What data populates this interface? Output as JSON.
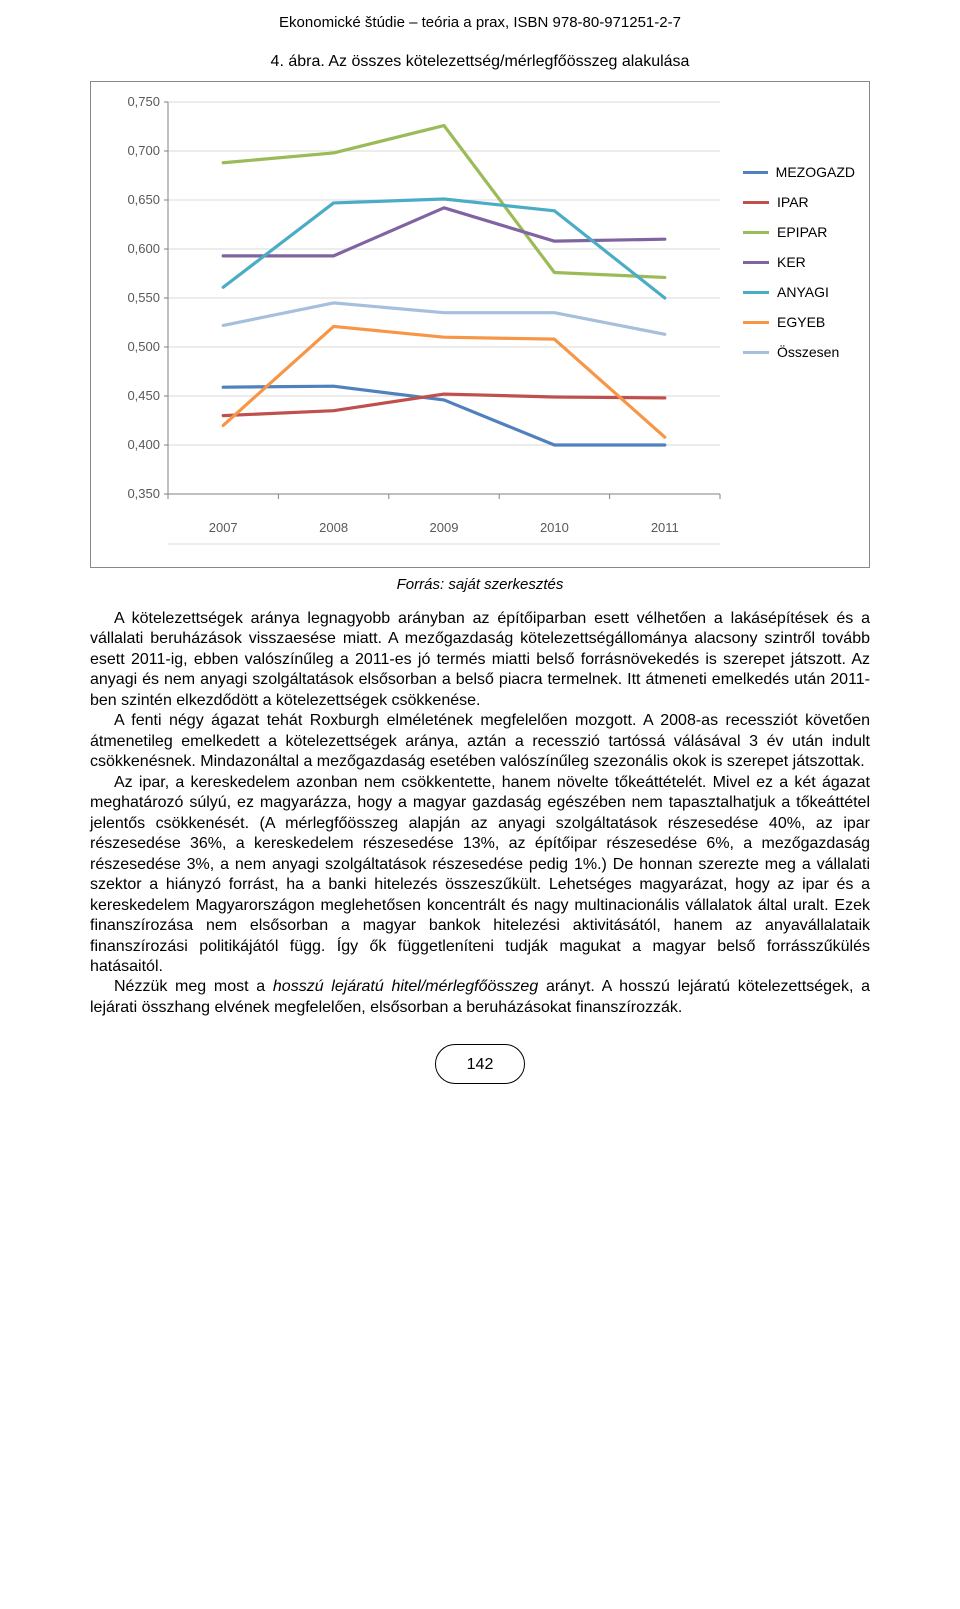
{
  "header_text": "Ekonomické štúdie – teória a prax, ISBN 978-80-971251-2-7",
  "fig_title": "4. ábra. Az összes kötelezettség/mérlegfőösszeg alakulása",
  "caption": "Forrás: saját szerkesztés",
  "page_number": "142",
  "chart": {
    "type": "line",
    "x_categories": [
      "2007",
      "2008",
      "2009",
      "2010",
      "2011"
    ],
    "y_ticks": [
      "0,350",
      "0,400",
      "0,450",
      "0,500",
      "0,550",
      "0,600",
      "0,650",
      "0,700",
      "0,750"
    ],
    "ylim": [
      0.35,
      0.75
    ],
    "plot_background": "#ffffff",
    "grid_color": "#d9d9d9",
    "axis_color": "#828282",
    "tick_font_color": "#595959",
    "tick_font_size": 13,
    "line_width": 3.2,
    "series": [
      {
        "name": "MEZOGAZD",
        "color": "#4f81bd",
        "values": [
          0.459,
          0.46,
          0.446,
          0.4,
          0.4
        ]
      },
      {
        "name": "IPAR",
        "color": "#c0504d",
        "values": [
          0.43,
          0.435,
          0.452,
          0.449,
          0.448
        ]
      },
      {
        "name": "EPIPAR",
        "color": "#9bbb59",
        "values": [
          0.688,
          0.698,
          0.726,
          0.576,
          0.571
        ]
      },
      {
        "name": "KER",
        "color": "#8064a2",
        "values": [
          0.593,
          0.593,
          0.642,
          0.608,
          0.61
        ]
      },
      {
        "name": "ANYAGI",
        "color": "#4bacc6",
        "values": [
          0.561,
          0.647,
          0.651,
          0.639,
          0.55
        ]
      },
      {
        "name": "EGYEB",
        "color": "#f79646",
        "values": [
          0.42,
          0.521,
          0.51,
          0.508,
          0.408
        ]
      },
      {
        "name": "Összesen",
        "color": "#a6bfdd",
        "values": [
          0.522,
          0.545,
          0.535,
          0.535,
          0.513
        ]
      }
    ]
  },
  "paragraphs": [
    "A kötelezettségek aránya legnagyobb arányban az építőiparban esett vélhetően a lakásépítések és a vállalati beruházások visszaesése miatt. A mezőgazdaság kötelezettségállománya alacsony szintről tovább esett 2011-ig, ebben valószínűleg a 2011-es jó termés miatti belső forrásnövekedés is szerepet játszott. Az anyagi és nem anyagi szolgáltatások elsősorban a belső piacra termelnek. Itt átmeneti emelkedés után 2011-ben szintén elkezdődött a kötelezettségek csökkenése.",
    "A fenti négy ágazat tehát Roxburgh elméletének megfelelően mozgott. A 2008-as recessziót követően átmenetileg emelkedett a kötelezettségek aránya, aztán a recesszió tartóssá válásával 3 év után indult csökkenésnek. Mindazonáltal a mezőgazdaság esetében valószínűleg szezonális okok is szerepet játszottak.",
    "Az ipar, a kereskedelem azonban nem csökkentette, hanem növelte tőkeáttételét. Mivel ez a két ágazat meghatározó súlyú, ez magyarázza, hogy a magyar gazdaság egészében nem tapasztalhatjuk a tőkeáttétel jelentős csökkenését. (A mérlegfőösszeg alapján az anyagi szolgáltatások részesedése 40%, az ipar részesedése 36%, a kereskedelem részesedése 13%, az építőipar részesedése 6%, a mezőgazdaság részesedése 3%, a nem anyagi szolgáltatások részesedése pedig 1%.) De honnan szerezte meg a vállalati szektor a hiányzó forrást, ha a banki hitelezés összeszűkült. Lehetséges magyarázat, hogy az ipar és a kereskedelem Magyarországon meglehetősen koncentrált és nagy multinacionális vállalatok által uralt. Ezek finanszírozása nem elsősorban a magyar bankok hitelezési aktivitásától, hanem az anyavállalataik finanszírozási politikájától függ. Így ők függetleníteni tudják magukat a magyar belső forrásszűkülés hatásaitól.",
    "Nézzük meg most a <i>hosszú lejáratú hitel/mérlegfőösszeg</i> arányt. A hosszú lejáratú kötelezettségek, a lejárati összhang elvének megfelelően, elsősorban a beruházásokat finanszírozzák."
  ]
}
